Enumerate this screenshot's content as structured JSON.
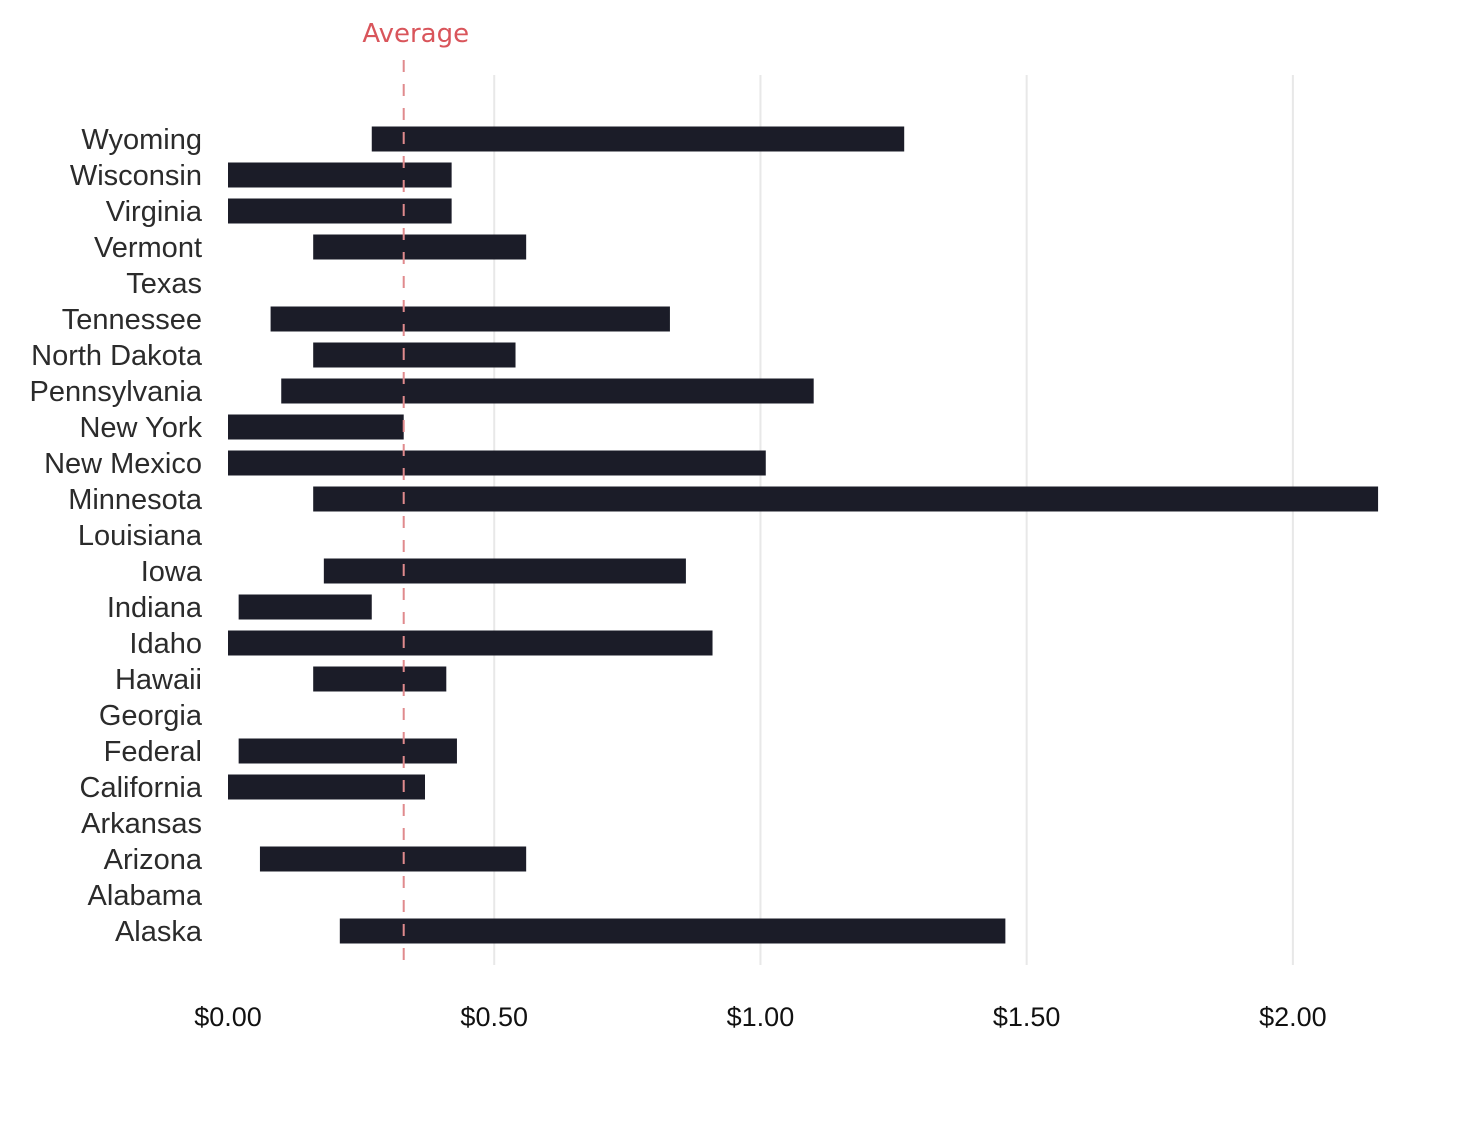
{
  "chart_data": {
    "type": "bar",
    "orientation": "horizontal",
    "subtype": "floating-range",
    "title": "",
    "xlabel": "",
    "ylabel": "",
    "xlim": [
      0,
      2.25
    ],
    "x_ticks": [
      0,
      0.5,
      1.0,
      1.5,
      2.0
    ],
    "x_tick_labels": [
      "$0.00",
      "$0.50",
      "$1.00",
      "$1.50",
      "$2.00"
    ],
    "grid": "vertical",
    "bar_color": "#1b1c28",
    "average": {
      "label": "Average",
      "value": 0.33,
      "color": "#d9555b"
    },
    "categories": [
      "Wyoming",
      "Wisconsin",
      "Virginia",
      "Vermont",
      "Texas",
      "Tennessee",
      "North Dakota",
      "Pennsylvania",
      "New York",
      "New Mexico",
      "Minnesota",
      "Louisiana",
      "Iowa",
      "Indiana",
      "Idaho",
      "Hawaii",
      "Georgia",
      "Federal",
      "California",
      "Arkansas",
      "Arizona",
      "Alabama",
      "Alaska"
    ],
    "ranges": [
      [
        0.27,
        1.27
      ],
      [
        0.0,
        0.42
      ],
      [
        0.0,
        0.42
      ],
      [
        0.16,
        0.56
      ],
      null,
      [
        0.08,
        0.83
      ],
      [
        0.16,
        0.54
      ],
      [
        0.1,
        1.1
      ],
      [
        0.0,
        0.33
      ],
      [
        0.0,
        1.01
      ],
      [
        0.16,
        2.16
      ],
      null,
      [
        0.18,
        0.86
      ],
      [
        0.02,
        0.27
      ],
      [
        0.0,
        0.91
      ],
      [
        0.16,
        0.41
      ],
      null,
      [
        0.02,
        0.43
      ],
      [
        0.0,
        0.37
      ],
      null,
      [
        0.06,
        0.56
      ],
      null,
      [
        0.21,
        1.46
      ]
    ]
  }
}
